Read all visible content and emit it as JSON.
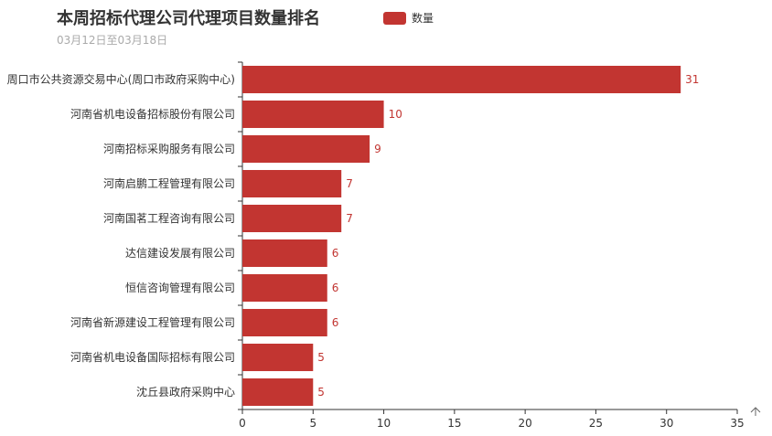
{
  "chart_data": {
    "type": "bar",
    "orientation": "horizontal",
    "title": "本周招标代理公司代理项目数量排名",
    "subtitle": "03月12日至03月18日",
    "legend": {
      "label": "数量",
      "position": "top"
    },
    "categories": [
      "周口市公共资源交易中心(周口市政府采购中心)",
      "河南省机电设备招标股份有限公司",
      "河南招标采购服务有限公司",
      "河南启鹏工程管理有限公司",
      "河南国茗工程咨询有限公司",
      "达信建设发展有限公司",
      "恒信咨询管理有限公司",
      "河南省新源建设工程管理有限公司",
      "河南省机电设备国际招标有限公司",
      "沈丘县政府采购中心"
    ],
    "values": [
      31,
      10,
      9,
      7,
      7,
      6,
      6,
      6,
      5,
      5
    ],
    "xlim": [
      0,
      35
    ],
    "xticks": [
      0,
      5,
      10,
      15,
      20,
      25,
      30,
      35
    ],
    "grid": false,
    "color": "#c23531",
    "toolbox_icon": "arrow-up-icon"
  }
}
